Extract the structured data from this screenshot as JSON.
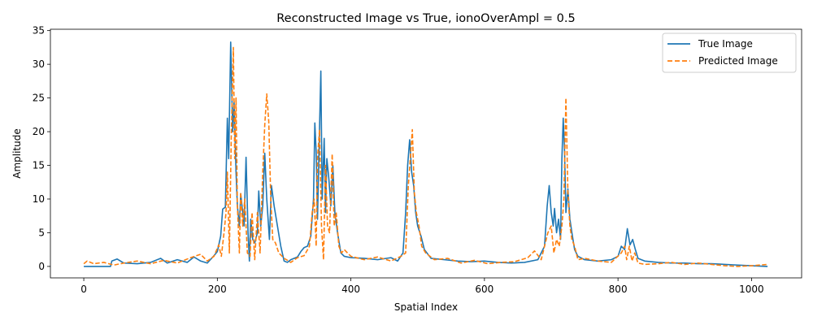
{
  "chart_data": {
    "type": "line",
    "title": "Reconstructed Image vs True, ionoOverAmpl = 0.5",
    "xlabel": "Spatial Index",
    "ylabel": "Amplitude",
    "xlim": [
      -50,
      1075
    ],
    "ylim": [
      -1.7,
      35.2
    ],
    "xticks": [
      0,
      200,
      400,
      600,
      800,
      1000
    ],
    "yticks": [
      0,
      5,
      10,
      15,
      20,
      25,
      30,
      35
    ],
    "grid": false,
    "legend_position": "top-right",
    "series": [
      {
        "name": "True Image",
        "color": "#1f77b4",
        "dash": "solid",
        "points": [
          [
            0,
            0
          ],
          [
            20,
            0
          ],
          [
            40,
            0
          ],
          [
            42,
            0.8
          ],
          [
            50,
            1.1
          ],
          [
            60,
            0.5
          ],
          [
            80,
            0.4
          ],
          [
            100,
            0.6
          ],
          [
            115,
            1.2
          ],
          [
            125,
            0.5
          ],
          [
            140,
            1.0
          ],
          [
            155,
            0.6
          ],
          [
            165,
            1.4
          ],
          [
            175,
            0.8
          ],
          [
            185,
            0.5
          ],
          [
            195,
            1.6
          ],
          [
            200,
            2.2
          ],
          [
            205,
            4.5
          ],
          [
            208,
            8.5
          ],
          [
            212,
            8.8
          ],
          [
            215,
            22
          ],
          [
            217,
            16
          ],
          [
            220,
            33.3
          ],
          [
            223,
            20
          ],
          [
            225,
            24.5
          ],
          [
            228,
            14
          ],
          [
            230,
            9
          ],
          [
            233,
            6
          ],
          [
            235,
            10.8
          ],
          [
            238,
            8
          ],
          [
            240,
            6
          ],
          [
            243,
            16.2
          ],
          [
            246,
            5
          ],
          [
            248,
            0.8
          ],
          [
            250,
            7
          ],
          [
            253,
            4
          ],
          [
            256,
            3.5
          ],
          [
            260,
            5
          ],
          [
            262,
            11.2
          ],
          [
            265,
            6
          ],
          [
            268,
            9
          ],
          [
            271,
            16.8
          ],
          [
            274,
            10
          ],
          [
            278,
            4
          ],
          [
            281,
            12
          ],
          [
            285,
            9
          ],
          [
            290,
            6
          ],
          [
            295,
            3
          ],
          [
            300,
            0.8
          ],
          [
            305,
            0.6
          ],
          [
            310,
            1.0
          ],
          [
            320,
            1.4
          ],
          [
            325,
            2.2
          ],
          [
            330,
            2.8
          ],
          [
            335,
            3
          ],
          [
            340,
            4.5
          ],
          [
            344,
            10
          ],
          [
            346,
            21.3
          ],
          [
            348,
            17
          ],
          [
            350,
            7
          ],
          [
            352,
            16
          ],
          [
            355,
            29
          ],
          [
            357,
            10
          ],
          [
            360,
            19
          ],
          [
            362,
            8
          ],
          [
            364,
            16
          ],
          [
            367,
            13
          ],
          [
            370,
            9
          ],
          [
            373,
            15
          ],
          [
            376,
            8
          ],
          [
            380,
            5
          ],
          [
            385,
            2
          ],
          [
            390,
            1.5
          ],
          [
            400,
            1.3
          ],
          [
            420,
            1.2
          ],
          [
            440,
            1.0
          ],
          [
            460,
            1.3
          ],
          [
            470,
            0.8
          ],
          [
            478,
            2
          ],
          [
            482,
            8
          ],
          [
            485,
            15
          ],
          [
            488,
            18.8
          ],
          [
            491,
            14
          ],
          [
            494,
            12
          ],
          [
            497,
            8
          ],
          [
            500,
            6
          ],
          [
            505,
            4.5
          ],
          [
            510,
            2.5
          ],
          [
            520,
            1.2
          ],
          [
            540,
            1.0
          ],
          [
            560,
            0.8
          ],
          [
            580,
            0.7
          ],
          [
            600,
            0.8
          ],
          [
            620,
            0.6
          ],
          [
            640,
            0.5
          ],
          [
            660,
            0.6
          ],
          [
            680,
            1.0
          ],
          [
            690,
            3
          ],
          [
            694,
            9
          ],
          [
            697,
            12
          ],
          [
            700,
            8
          ],
          [
            703,
            6
          ],
          [
            705,
            8.6
          ],
          [
            708,
            5
          ],
          [
            711,
            7
          ],
          [
            714,
            4
          ],
          [
            716,
            16
          ],
          [
            718,
            22
          ],
          [
            720,
            17
          ],
          [
            722,
            8
          ],
          [
            725,
            11.5
          ],
          [
            728,
            7
          ],
          [
            731,
            5
          ],
          [
            735,
            2.5
          ],
          [
            740,
            1.5
          ],
          [
            750,
            1.0
          ],
          [
            770,
            0.8
          ],
          [
            790,
            1.0
          ],
          [
            800,
            1.5
          ],
          [
            805,
            3
          ],
          [
            810,
            2.5
          ],
          [
            814,
            5.6
          ],
          [
            818,
            3.2
          ],
          [
            822,
            4
          ],
          [
            826,
            2.5
          ],
          [
            830,
            1.2
          ],
          [
            840,
            0.8
          ],
          [
            860,
            0.6
          ],
          [
            880,
            0.5
          ],
          [
            900,
            0.5
          ],
          [
            920,
            0.4
          ],
          [
            940,
            0.4
          ],
          [
            960,
            0.3
          ],
          [
            980,
            0.2
          ],
          [
            1000,
            0.1
          ],
          [
            1024,
            0.0
          ]
        ]
      },
      {
        "name": "Predicted Image",
        "color": "#ff7f0e",
        "dash": "dashed",
        "points": [
          [
            0,
            0.4
          ],
          [
            5,
            0.8
          ],
          [
            15,
            0.4
          ],
          [
            30,
            0.6
          ],
          [
            45,
            0.2
          ],
          [
            60,
            0.5
          ],
          [
            80,
            0.8
          ],
          [
            100,
            0.4
          ],
          [
            120,
            0.9
          ],
          [
            140,
            0.5
          ],
          [
            160,
            1.3
          ],
          [
            175,
            1.8
          ],
          [
            185,
            0.8
          ],
          [
            195,
            1.5
          ],
          [
            202,
            3.2
          ],
          [
            206,
            1.5
          ],
          [
            210,
            5
          ],
          [
            213,
            8
          ],
          [
            215,
            14
          ],
          [
            218,
            2
          ],
          [
            221,
            20
          ],
          [
            224,
            32.5
          ],
          [
            226,
            16
          ],
          [
            228,
            25
          ],
          [
            230,
            9
          ],
          [
            233,
            2
          ],
          [
            235,
            11
          ],
          [
            238,
            6
          ],
          [
            241,
            10
          ],
          [
            245,
            2
          ],
          [
            249,
            1.5
          ],
          [
            252,
            8
          ],
          [
            256,
            1
          ],
          [
            260,
            8
          ],
          [
            264,
            2
          ],
          [
            268,
            14
          ],
          [
            271,
            21
          ],
          [
            274,
            25.6
          ],
          [
            277,
            21.5
          ],
          [
            280,
            10
          ],
          [
            283,
            4
          ],
          [
            287,
            3.5
          ],
          [
            292,
            2
          ],
          [
            300,
            1.2
          ],
          [
            310,
            0.6
          ],
          [
            320,
            1.3
          ],
          [
            330,
            1.6
          ],
          [
            338,
            3
          ],
          [
            342,
            8
          ],
          [
            345,
            10
          ],
          [
            348,
            3
          ],
          [
            350,
            16
          ],
          [
            353,
            20.3
          ],
          [
            356,
            6
          ],
          [
            359,
            1
          ],
          [
            362,
            15
          ],
          [
            365,
            6
          ],
          [
            368,
            5
          ],
          [
            372,
            16.7
          ],
          [
            375,
            6
          ],
          [
            378,
            8
          ],
          [
            382,
            3
          ],
          [
            386,
            2
          ],
          [
            390,
            2.5
          ],
          [
            400,
            1.5
          ],
          [
            420,
            1.0
          ],
          [
            440,
            1.4
          ],
          [
            460,
            0.8
          ],
          [
            475,
            1.5
          ],
          [
            482,
            2
          ],
          [
            486,
            12
          ],
          [
            489,
            16
          ],
          [
            492,
            20.3
          ],
          [
            495,
            11
          ],
          [
            498,
            8
          ],
          [
            502,
            6
          ],
          [
            506,
            3
          ],
          [
            512,
            2
          ],
          [
            525,
            1.0
          ],
          [
            545,
            1.2
          ],
          [
            565,
            0.5
          ],
          [
            585,
            0.9
          ],
          [
            605,
            0.4
          ],
          [
            625,
            0.6
          ],
          [
            645,
            0.7
          ],
          [
            665,
            1.3
          ],
          [
            675,
            2.3
          ],
          [
            685,
            1.0
          ],
          [
            695,
            5
          ],
          [
            700,
            6
          ],
          [
            704,
            2
          ],
          [
            708,
            4
          ],
          [
            712,
            3
          ],
          [
            716,
            6
          ],
          [
            719,
            10
          ],
          [
            722,
            25
          ],
          [
            725,
            11
          ],
          [
            728,
            6
          ],
          [
            731,
            4
          ],
          [
            735,
            3
          ],
          [
            740,
            1.0
          ],
          [
            750,
            1.2
          ],
          [
            770,
            0.8
          ],
          [
            790,
            0.6
          ],
          [
            805,
            2
          ],
          [
            810,
            3
          ],
          [
            813,
            1
          ],
          [
            817,
            3
          ],
          [
            821,
            0.8
          ],
          [
            825,
            2
          ],
          [
            830,
            0.5
          ],
          [
            840,
            0.3
          ],
          [
            860,
            0.4
          ],
          [
            880,
            0.6
          ],
          [
            900,
            0.3
          ],
          [
            920,
            0.5
          ],
          [
            940,
            0.3
          ],
          [
            960,
            0.1
          ],
          [
            980,
            0.0
          ],
          [
            1000,
            0.1
          ],
          [
            1024,
            0.3
          ]
        ]
      }
    ]
  }
}
